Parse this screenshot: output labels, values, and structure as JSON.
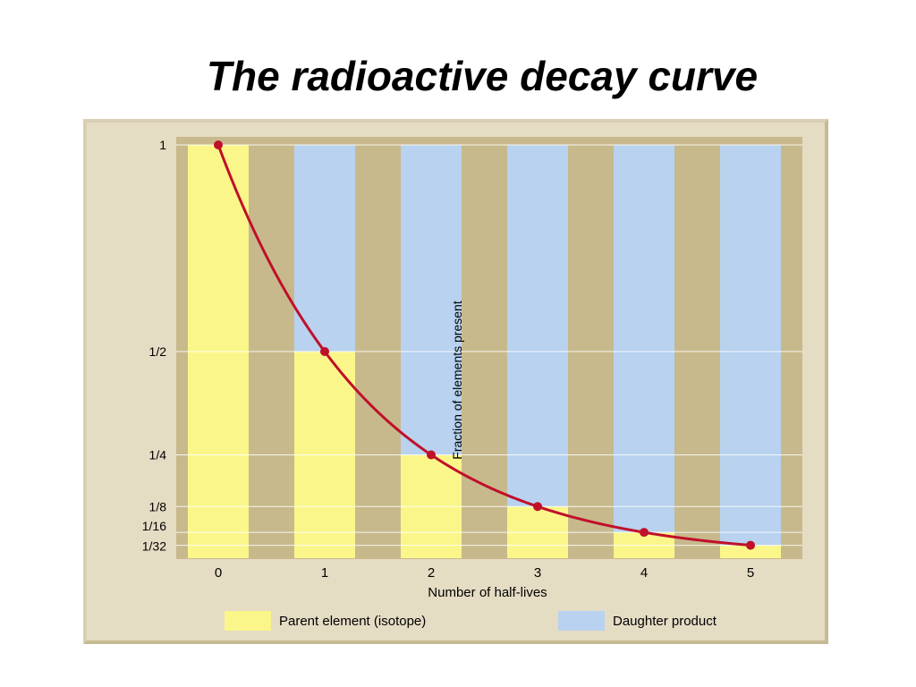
{
  "title": "The radioactive decay curve",
  "colors": {
    "parent": "#fbf68a",
    "daughter": "#b8d2ef",
    "plot_background": "#c8b98c",
    "panel_background": "#e5dcc4",
    "curve": "#c0102a"
  },
  "chart_data": {
    "type": "bar",
    "categories": [
      "0",
      "1",
      "2",
      "3",
      "4",
      "5"
    ],
    "x": [
      0,
      1,
      2,
      3,
      4,
      5
    ],
    "xlabel": "Number of half-lives",
    "ylabel": "Fraction of elements present",
    "ylim": [
      0,
      1
    ],
    "yticks": [
      {
        "value": 1,
        "label": "1"
      },
      {
        "value": 0.5,
        "label": "1/2"
      },
      {
        "value": 0.25,
        "label": "1/4"
      },
      {
        "value": 0.125,
        "label": "1/8"
      },
      {
        "value": 0.0625,
        "label": "1/16"
      },
      {
        "value": 0.03125,
        "label": "1/32"
      }
    ],
    "series": [
      {
        "name": "Parent element (isotope)",
        "values": [
          1,
          0.5,
          0.25,
          0.125,
          0.0625,
          0.03125
        ]
      },
      {
        "name": "Daughter product",
        "values": [
          0,
          0.5,
          0.75,
          0.875,
          0.9375,
          0.96875
        ]
      }
    ],
    "stacked": true,
    "curve_points": [
      1,
      0.5,
      0.25,
      0.125,
      0.0625,
      0.03125
    ],
    "grid": true,
    "legend_position": "bottom"
  }
}
